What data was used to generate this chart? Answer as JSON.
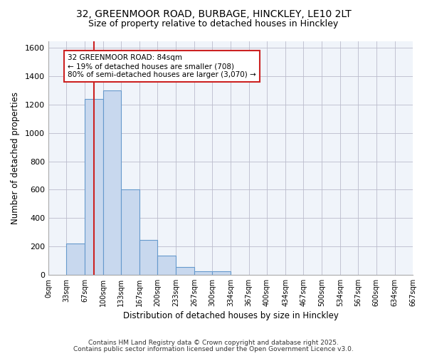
{
  "title1": "32, GREENMOOR ROAD, BURBAGE, HINCKLEY, LE10 2LT",
  "title2": "Size of property relative to detached houses in Hinckley",
  "xlabel": "Distribution of detached houses by size in Hinckley",
  "ylabel": "Number of detached properties",
  "bar_color": "#c8d8ee",
  "bar_edge_color": "#6699cc",
  "background_color": "#ffffff",
  "grid_color": "#bbbbcc",
  "bin_edges": [
    0,
    33,
    67,
    100,
    133,
    167,
    200,
    233,
    267,
    300,
    334,
    367,
    400,
    434,
    467,
    500,
    534,
    567,
    600,
    634,
    667
  ],
  "bar_heights": [
    0,
    220,
    1240,
    1300,
    600,
    245,
    135,
    55,
    25,
    25,
    0,
    0,
    0,
    0,
    0,
    0,
    0,
    0,
    0,
    0
  ],
  "property_size": 84,
  "property_line_color": "#cc2222",
  "annotation_text": "32 GREENMOOR ROAD: 84sqm\n← 19% of detached houses are smaller (708)\n80% of semi-detached houses are larger (3,070) →",
  "annotation_box_color": "#ffffff",
  "annotation_border_color": "#cc2222",
  "ylim": [
    0,
    1650
  ],
  "yticks": [
    0,
    200,
    400,
    600,
    800,
    1000,
    1200,
    1400,
    1600
  ],
  "footnote1": "Contains HM Land Registry data © Crown copyright and database right 2025.",
  "footnote2": "Contains public sector information licensed under the Open Government Licence v3.0.",
  "bg_plot_color": "#f0f4fa"
}
